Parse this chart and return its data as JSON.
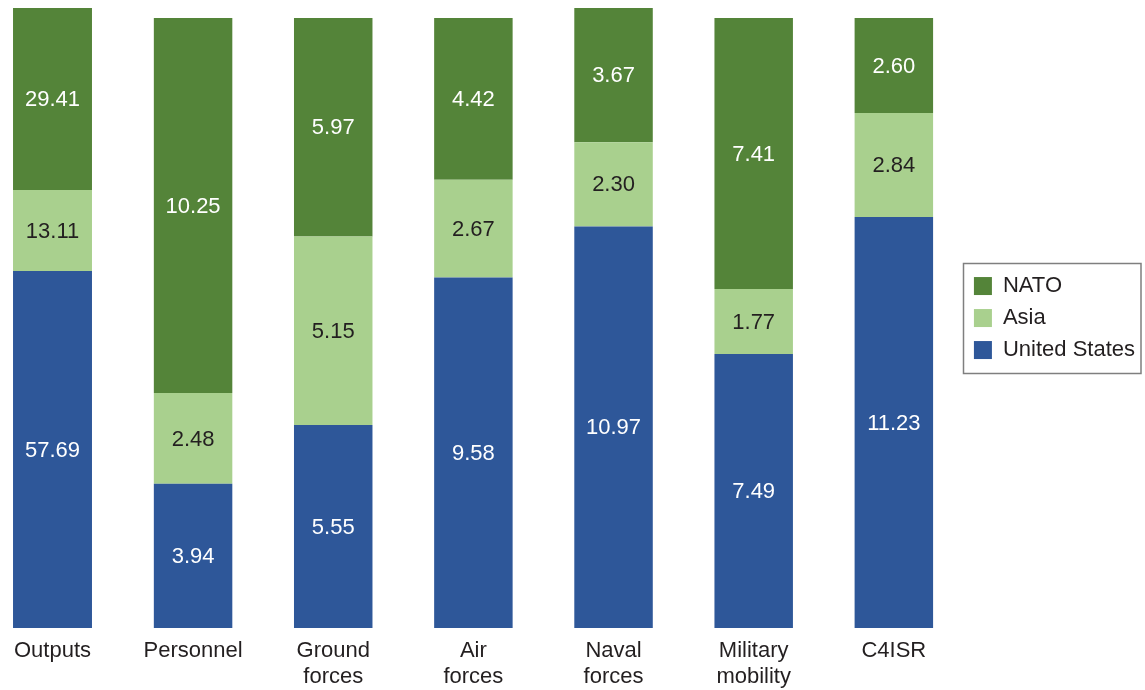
{
  "chart_data": [
    {
      "type": "bar",
      "stacked": true,
      "categories": [
        "Outputs"
      ],
      "series": [
        {
          "color": "#2e5799",
          "values": [
            57.69
          ],
          "value_labels": [
            "57.69"
          ]
        },
        {
          "color": "#a9d08e",
          "values": [
            13.11
          ],
          "value_labels": [
            "13.11"
          ]
        },
        {
          "color": "#548439",
          "values": [
            29.41
          ],
          "value_labels": [
            "29.41"
          ]
        }
      ]
    },
    {
      "type": "bar",
      "stacked": true,
      "legend": "right",
      "categories": [
        "Personnel",
        "Ground forces",
        "Air forces",
        "Naval forces",
        "Military mobility",
        "C4ISR"
      ],
      "series": [
        {
          "name": "United States",
          "color": "#2e5799",
          "values": [
            3.94,
            5.55,
            9.58,
            10.97,
            7.49,
            11.23
          ],
          "value_labels": [
            "3.94",
            "5.55",
            "9.58",
            "10.97",
            "7.49",
            "11.23"
          ]
        },
        {
          "name": "Asia",
          "color": "#a9d08e",
          "values": [
            2.48,
            5.15,
            2.67,
            2.3,
            1.77,
            2.84
          ],
          "value_labels": [
            "2.48",
            "5.15",
            "2.67",
            "2.30",
            "1.77",
            "2.84"
          ]
        },
        {
          "name": "NATO",
          "color": "#548439",
          "values": [
            10.25,
            5.97,
            4.42,
            3.67,
            7.41,
            2.6
          ],
          "value_labels": [
            "10.25",
            "5.97",
            "4.42",
            "3.67",
            "7.41",
            "2.60"
          ]
        }
      ]
    }
  ]
}
